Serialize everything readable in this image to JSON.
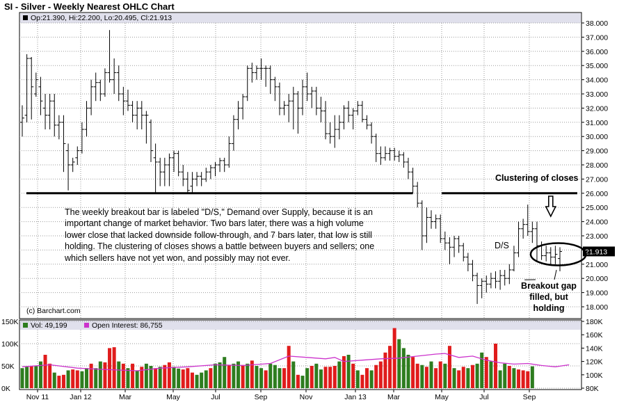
{
  "title": "SI - Silver - Weekly Nearest OHLC Chart",
  "ohlc_label": "Op:21.390, Hi:22.200, Lo:20.495, Cl:21.913",
  "last_price": "21.913",
  "vol_label": "Vol: 49,199",
  "oi_label": "Open Interest: 86,755",
  "copyright": "(c) Barchart.com",
  "annotation_note": "The weekly breakout bar is labeled \"D/S,\" Demand over Supply, because it is an important change of market behavior.  Two bars later, there was a high volume lower close that lacked downside follow-through, and 7 bars later, that low is still holding.  The clustering of closes shows a battle between buyers and sellers; one which sellers have not yet won, and possibly may not ever.",
  "label_clustering": "Clustering of closes",
  "label_ds": "D/S",
  "label_breakout": "Breakout gap filled, but holding",
  "colors": {
    "up_volume": "#2e7d1f",
    "down_volume": "#e01c1c",
    "open_interest": "#cc33cc",
    "grid": "#9a9a9a",
    "header_band": "#e0e0ec"
  },
  "chart_data": {
    "type": "ohlc",
    "title": "SI - Silver - Weekly Nearest OHLC Chart",
    "x_tick_labels": [
      "Nov 11",
      "Jan 12",
      "Mar",
      "May",
      "Jul",
      "Sep",
      "Nov",
      "Jan 13",
      "Mar",
      "May",
      "Jul",
      "Sep"
    ],
    "price_axis": {
      "ylim": [
        17.0,
        38.5
      ],
      "tick_labels": [
        "18.000",
        "19.000",
        "20.000",
        "21.000",
        "22.000",
        "23.000",
        "24.000",
        "25.000",
        "26.000",
        "27.000",
        "28.000",
        "29.000",
        "30.000",
        "31.000",
        "32.000",
        "33.000",
        "34.000",
        "35.000",
        "36.000",
        "37.000",
        "38.000"
      ]
    },
    "volume_axis": {
      "left_ticks": [
        "0K",
        "50K",
        "100K",
        "150K"
      ],
      "right_ticks": [
        "80K",
        "100K",
        "120K",
        "140K",
        "160K",
        "180K"
      ]
    },
    "support_line_level": 26.0,
    "ohlc": [
      [
        31.0,
        32.2,
        30.0,
        31.3
      ],
      [
        31.5,
        35.8,
        31.0,
        35.5
      ],
      [
        35.5,
        35.6,
        31.2,
        33.5
      ],
      [
        33.0,
        34.5,
        32.8,
        34.0
      ],
      [
        33.5,
        34.2,
        31.5,
        32.5
      ],
      [
        32.0,
        33.0,
        30.5,
        31.5
      ],
      [
        31.5,
        33.0,
        30.5,
        32.5
      ],
      [
        32.5,
        33.0,
        30.0,
        30.8
      ],
      [
        30.8,
        31.5,
        29.8,
        31.0
      ],
      [
        31.0,
        31.5,
        27.5,
        29.5
      ],
      [
        29.0,
        29.5,
        26.2,
        28.0
      ],
      [
        28.0,
        28.5,
        27.5,
        28.2
      ],
      [
        28.5,
        29.3,
        28.0,
        29.0
      ],
      [
        29.0,
        31.0,
        28.8,
        30.5
      ],
      [
        30.5,
        32.5,
        30.0,
        32.0
      ],
      [
        32.0,
        34.0,
        31.5,
        33.5
      ],
      [
        33.5,
        34.5,
        32.5,
        33.8
      ],
      [
        33.8,
        34.0,
        32.5,
        33.0
      ],
      [
        33.0,
        34.8,
        32.8,
        34.5
      ],
      [
        34.5,
        37.5,
        33.8,
        34.0
      ],
      [
        34.0,
        35.5,
        33.0,
        34.5
      ],
      [
        34.5,
        35.0,
        32.5,
        33.0
      ],
      [
        33.0,
        33.5,
        31.5,
        32.5
      ],
      [
        32.5,
        33.3,
        31.8,
        32.2
      ],
      [
        32.2,
        32.5,
        31.0,
        31.5
      ],
      [
        31.5,
        32.5,
        30.5,
        32.0
      ],
      [
        32.0,
        32.5,
        30.5,
        31.5
      ],
      [
        31.5,
        31.8,
        29.5,
        31.5
      ],
      [
        31.0,
        31.2,
        28.2,
        29.0
      ],
      [
        28.5,
        29.5,
        26.0,
        28.2
      ],
      [
        28.2,
        28.5,
        26.5,
        27.5
      ],
      [
        27.5,
        28.5,
        26.5,
        28.0
      ],
      [
        28.0,
        28.8,
        26.5,
        28.5
      ],
      [
        28.5,
        29.0,
        27.5,
        28.8
      ],
      [
        28.8,
        29.0,
        27.2,
        27.5
      ],
      [
        27.5,
        28.0,
        26.5,
        27.0
      ],
      [
        27.0,
        27.5,
        26.0,
        26.2
      ],
      [
        26.5,
        27.5,
        26.0,
        27.0
      ],
      [
        27.0,
        27.5,
        26.5,
        27.2
      ],
      [
        27.2,
        27.5,
        26.5,
        27.0
      ],
      [
        27.0,
        27.8,
        26.8,
        27.5
      ],
      [
        27.5,
        28.0,
        27.0,
        27.8
      ],
      [
        27.8,
        28.2,
        27.2,
        28.0
      ],
      [
        28.0,
        28.5,
        27.5,
        28.3
      ],
      [
        28.3,
        28.5,
        27.5,
        28.0
      ],
      [
        28.0,
        30.0,
        27.8,
        29.5
      ],
      [
        29.5,
        31.5,
        29.0,
        31.2
      ],
      [
        31.2,
        32.5,
        30.5,
        32.0
      ],
      [
        32.0,
        33.0,
        31.2,
        32.8
      ],
      [
        32.8,
        35.0,
        32.5,
        34.8
      ],
      [
        34.8,
        35.2,
        33.8,
        34.5
      ],
      [
        34.5,
        35.0,
        34.0,
        34.8
      ],
      [
        34.8,
        35.5,
        34.0,
        34.8
      ],
      [
        34.8,
        35.0,
        33.5,
        34.8
      ],
      [
        34.8,
        35.0,
        33.0,
        34.0
      ],
      [
        34.0,
        34.2,
        32.5,
        33.5
      ],
      [
        33.5,
        33.8,
        31.5,
        32.0
      ],
      [
        32.0,
        32.5,
        31.5,
        32.2
      ],
      [
        32.2,
        33.0,
        31.0,
        32.5
      ],
      [
        32.5,
        33.5,
        30.5,
        33.0
      ],
      [
        33.0,
        33.2,
        30.2,
        32.0
      ],
      [
        32.0,
        34.0,
        31.5,
        33.5
      ],
      [
        33.5,
        34.5,
        32.5,
        33.0
      ],
      [
        33.0,
        33.5,
        32.0,
        33.2
      ],
      [
        33.2,
        33.5,
        31.5,
        32.0
      ],
      [
        32.0,
        32.8,
        31.0,
        31.8
      ],
      [
        31.8,
        32.5,
        29.8,
        30.2
      ],
      [
        30.2,
        31.0,
        29.5,
        30.0
      ],
      [
        30.0,
        31.5,
        29.2,
        30.5
      ],
      [
        30.5,
        31.5,
        29.8,
        31.0
      ],
      [
        31.0,
        32.2,
        30.5,
        32.0
      ],
      [
        32.0,
        32.5,
        31.0,
        31.5
      ],
      [
        31.5,
        32.0,
        30.5,
        31.8
      ],
      [
        31.8,
        32.5,
        31.5,
        32.2
      ],
      [
        32.2,
        32.5,
        31.0,
        31.2
      ],
      [
        31.2,
        31.5,
        30.5,
        30.8
      ],
      [
        30.8,
        31.0,
        29.5,
        30.0
      ],
      [
        30.0,
        30.2,
        28.2,
        28.8
      ],
      [
        28.8,
        29.3,
        28.0,
        28.5
      ],
      [
        28.5,
        29.3,
        28.3,
        28.8
      ],
      [
        28.8,
        29.2,
        28.3,
        29.0
      ],
      [
        29.0,
        29.2,
        28.3,
        28.6
      ],
      [
        28.6,
        29.0,
        28.2,
        28.7
      ],
      [
        28.7,
        28.9,
        27.8,
        28.2
      ],
      [
        28.2,
        28.5,
        27.0,
        27.5
      ],
      [
        27.5,
        27.8,
        26.0,
        26.5
      ],
      [
        26.5,
        26.8,
        25.0,
        25.3
      ],
      [
        25.3,
        25.5,
        22.0,
        23.0
      ],
      [
        23.0,
        25.0,
        22.5,
        24.3
      ],
      [
        24.3,
        24.8,
        23.5,
        24.0
      ],
      [
        24.0,
        24.5,
        23.5,
        24.2
      ],
      [
        24.2,
        24.5,
        22.5,
        22.8
      ],
      [
        22.8,
        23.3,
        22.0,
        22.5
      ],
      [
        22.5,
        22.9,
        21.0,
        22.2
      ],
      [
        22.2,
        23.0,
        21.5,
        22.8
      ],
      [
        22.8,
        23.0,
        21.8,
        22.3
      ],
      [
        22.3,
        22.5,
        21.2,
        21.5
      ],
      [
        21.5,
        21.8,
        20.5,
        21.0
      ],
      [
        21.0,
        21.3,
        19.8,
        20.2
      ],
      [
        20.2,
        20.4,
        18.2,
        19.5
      ],
      [
        19.5,
        20.0,
        18.6,
        19.8
      ],
      [
        19.8,
        20.2,
        19.0,
        19.6
      ],
      [
        19.6,
        20.4,
        19.3,
        20.0
      ],
      [
        20.0,
        20.5,
        19.3,
        19.8
      ],
      [
        19.8,
        20.6,
        19.2,
        20.2
      ],
      [
        20.2,
        20.6,
        19.5,
        20.0
      ],
      [
        20.0,
        21.0,
        19.6,
        20.6
      ],
      [
        20.6,
        22.3,
        20.5,
        21.8
      ],
      [
        21.8,
        24.0,
        21.5,
        23.5
      ],
      [
        23.5,
        24.2,
        22.8,
        23.8
      ],
      [
        23.8,
        25.2,
        23.0,
        23.3
      ],
      [
        23.3,
        24.0,
        22.5,
        23.5
      ],
      [
        23.5,
        24.0,
        21.2,
        22.3
      ],
      [
        22.3,
        22.6,
        21.3,
        21.6
      ],
      [
        21.6,
        22.3,
        21.2,
        21.8
      ],
      [
        21.8,
        22.2,
        21.0,
        21.5
      ],
      [
        21.5,
        22.3,
        21.0,
        21.7
      ],
      [
        21.4,
        22.2,
        20.5,
        21.9
      ]
    ],
    "volume": [
      [
        45,
        1
      ],
      [
        48,
        1
      ],
      [
        50,
        0
      ],
      [
        50,
        1
      ],
      [
        60,
        1
      ],
      [
        75,
        0
      ],
      [
        55,
        0
      ],
      [
        35,
        1
      ],
      [
        28,
        0
      ],
      [
        30,
        0
      ],
      [
        40,
        1
      ],
      [
        42,
        0
      ],
      [
        40,
        0
      ],
      [
        38,
        1
      ],
      [
        45,
        1
      ],
      [
        55,
        0
      ],
      [
        45,
        1
      ],
      [
        60,
        1
      ],
      [
        58,
        0
      ],
      [
        90,
        0
      ],
      [
        92,
        0
      ],
      [
        60,
        1
      ],
      [
        55,
        0
      ],
      [
        45,
        1
      ],
      [
        55,
        0
      ],
      [
        40,
        1
      ],
      [
        48,
        0
      ],
      [
        55,
        1
      ],
      [
        50,
        1
      ],
      [
        45,
        0
      ],
      [
        48,
        1
      ],
      [
        52,
        0
      ],
      [
        58,
        0
      ],
      [
        48,
        1
      ],
      [
        44,
        1
      ],
      [
        42,
        0
      ],
      [
        45,
        0
      ],
      [
        35,
        0
      ],
      [
        30,
        1
      ],
      [
        35,
        1
      ],
      [
        40,
        1
      ],
      [
        45,
        0
      ],
      [
        55,
        1
      ],
      [
        58,
        1
      ],
      [
        70,
        1
      ],
      [
        52,
        0
      ],
      [
        55,
        1
      ],
      [
        60,
        1
      ],
      [
        52,
        0
      ],
      [
        55,
        1
      ],
      [
        62,
        0
      ],
      [
        50,
        1
      ],
      [
        45,
        1
      ],
      [
        40,
        0
      ],
      [
        55,
        1
      ],
      [
        52,
        1
      ],
      [
        45,
        1
      ],
      [
        45,
        0
      ],
      [
        95,
        0
      ],
      [
        60,
        1
      ],
      [
        30,
        0
      ],
      [
        28,
        1
      ],
      [
        45,
        1
      ],
      [
        50,
        0
      ],
      [
        55,
        1
      ],
      [
        42,
        1
      ],
      [
        48,
        0
      ],
      [
        48,
        0
      ],
      [
        50,
        0
      ],
      [
        60,
        1
      ],
      [
        72,
        0
      ],
      [
        75,
        1
      ],
      [
        55,
        0
      ],
      [
        40,
        1
      ],
      [
        30,
        0
      ],
      [
        45,
        0
      ],
      [
        40,
        1
      ],
      [
        52,
        0
      ],
      [
        60,
        0
      ],
      [
        80,
        0
      ],
      [
        95,
        0
      ],
      [
        135,
        0
      ],
      [
        110,
        1
      ],
      [
        90,
        1
      ],
      [
        75,
        1
      ],
      [
        70,
        0
      ],
      [
        55,
        0
      ],
      [
        52,
        1
      ],
      [
        48,
        0
      ],
      [
        60,
        1
      ],
      [
        45,
        0
      ],
      [
        60,
        0
      ],
      [
        55,
        1
      ],
      [
        95,
        0
      ],
      [
        45,
        1
      ],
      [
        40,
        0
      ],
      [
        48,
        0
      ],
      [
        45,
        1
      ],
      [
        52,
        0
      ],
      [
        55,
        1
      ],
      [
        80,
        1
      ],
      [
        70,
        0
      ],
      [
        60,
        1
      ],
      [
        100,
        0
      ],
      [
        40,
        1
      ],
      [
        55,
        1
      ],
      [
        50,
        0
      ],
      [
        45,
        1
      ],
      [
        42,
        0
      ],
      [
        40,
        0
      ],
      [
        38,
        0
      ],
      [
        49,
        1
      ]
    ],
    "open_interest": [
      [
        0,
        112
      ],
      [
        6,
        115
      ],
      [
        12,
        110
      ],
      [
        18,
        108
      ],
      [
        25,
        106
      ],
      [
        30,
        110
      ],
      [
        36,
        112
      ],
      [
        42,
        115
      ],
      [
        48,
        114
      ],
      [
        54,
        117
      ],
      [
        58,
        128
      ],
      [
        62,
        126
      ],
      [
        66,
        124
      ],
      [
        68,
        126
      ],
      [
        70,
        120
      ],
      [
        74,
        122
      ],
      [
        78,
        124
      ],
      [
        82,
        125
      ],
      [
        86,
        128
      ],
      [
        90,
        131
      ],
      [
        92,
        132
      ],
      [
        95,
        126
      ],
      [
        98,
        128
      ],
      [
        101,
        122
      ],
      [
        104,
        118
      ],
      [
        107,
        116
      ],
      [
        110,
        117
      ],
      [
        113,
        114
      ],
      [
        116,
        112
      ],
      [
        119,
        115
      ]
    ],
    "support_line_segments": [
      [
        0,
        85
      ],
      [
        91,
        121
      ]
    ],
    "down_arrow_bar": 115,
    "cluster_ellipse_bars": [
      112,
      121
    ],
    "series": [
      {
        "name": "Vol: 49,199",
        "values_in": "volume"
      },
      {
        "name": "Open Interest: 86,755",
        "values_in": "open_interest"
      }
    ]
  }
}
